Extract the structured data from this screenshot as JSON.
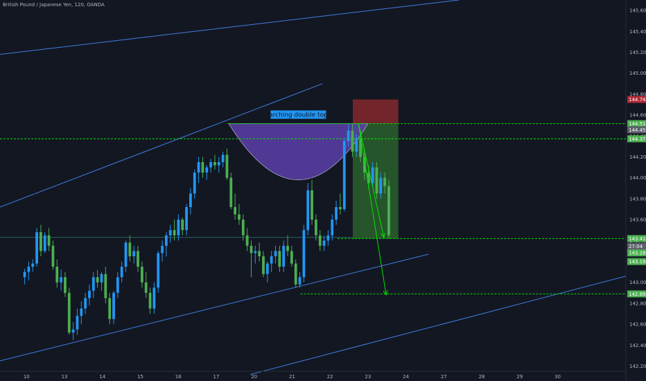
{
  "header": {
    "symbol_title": "British Pound / Japanese Yen, 120, OANDA"
  },
  "annotation": {
    "label": "arching double top"
  },
  "colors": {
    "background": "#131722",
    "candle_up": "#2196f3",
    "candle_down": "#4caf50",
    "trendline": "#3f7fe0",
    "level_line": "#00e600",
    "stop_zone": "#8b2b2f",
    "target_zone": "#2f6b2f",
    "arc_fill": "#5b3fa8",
    "axis_text": "#b2b5be"
  },
  "chart_data": {
    "type": "candlestick",
    "title": "British Pound / Japanese Yen, 120, OANDA",
    "ylim": [
      142.15,
      145.7
    ],
    "x_range": [
      -0.7,
      15.8
    ],
    "x_tick_labels": [
      {
        "x": 0,
        "label": "10"
      },
      {
        "x": 1,
        "label": "13"
      },
      {
        "x": 2,
        "label": "14"
      },
      {
        "x": 3,
        "label": "15"
      },
      {
        "x": 4,
        "label": "16"
      },
      {
        "x": 5,
        "label": "17"
      },
      {
        "x": 6,
        "label": "20"
      },
      {
        "x": 7,
        "label": "21"
      },
      {
        "x": 8,
        "label": "22"
      },
      {
        "x": 9,
        "label": "23"
      },
      {
        "x": 10,
        "label": "24"
      },
      {
        "x": 11,
        "label": "27"
      },
      {
        "x": 12,
        "label": "28"
      },
      {
        "x": 13,
        "label": "29"
      },
      {
        "x": 14,
        "label": "30"
      }
    ],
    "y_ticks": [
      142.2,
      142.4,
      142.6,
      142.8,
      143.0,
      143.2,
      143.4,
      143.6,
      143.8,
      144.0,
      144.2,
      144.4,
      144.6,
      144.8,
      145.0,
      145.2,
      145.4,
      145.6
    ],
    "y_tick_labels": [
      "142.200",
      "142.400",
      "142.600",
      "142.800",
      "143.000",
      "143.200",
      "143.400",
      "143.600",
      "143.800",
      "144.000",
      "144.200",
      "144.400",
      "144.600",
      "144.800",
      "145.000",
      "145.200",
      "145.400",
      "145.600"
    ],
    "price_tags": [
      {
        "value": 144.749,
        "label": "144.749",
        "color": "#b22833"
      },
      {
        "value": 144.518,
        "label": "144.518",
        "color": "#4caf50"
      },
      {
        "value": 144.459,
        "label": "144.459",
        "color": "#5d606b"
      },
      {
        "value": 144.373,
        "label": "144.373",
        "color": "#4caf50"
      },
      {
        "value": 143.419,
        "label": "143.419",
        "color": "#4caf50"
      },
      {
        "value": 143.345,
        "label": "27:04",
        "color": "#5d606b"
      },
      {
        "value": 143.282,
        "label": "143.282",
        "color": "#4caf50"
      },
      {
        "value": 143.199,
        "label": "143.199",
        "color": "#4caf50"
      },
      {
        "value": 142.89,
        "label": "142.890",
        "color": "#4caf50"
      }
    ],
    "levels": [
      {
        "value": 144.373,
        "x_start": -0.7,
        "x_end": 15.8,
        "style": "dashed"
      },
      {
        "value": 144.518,
        "x_start": 5.3,
        "x_end": 15.8,
        "style": "dashed"
      },
      {
        "value": 143.419,
        "x_start": 8.2,
        "x_end": 15.8,
        "style": "dashed"
      },
      {
        "value": 142.89,
        "x_start": 7.22,
        "x_end": 15.8,
        "style": "dashed"
      },
      {
        "value": 143.43,
        "x_start": -0.7,
        "x_end": 8.6,
        "style": "solid-thin"
      }
    ],
    "trendlines": [
      {
        "x1": -0.7,
        "y1": 145.18,
        "x2": 11.4,
        "y2": 145.7
      },
      {
        "x1": -0.7,
        "y1": 143.72,
        "x2": 7.8,
        "y2": 144.9
      },
      {
        "x1": -0.7,
        "y1": 142.25,
        "x2": 10.6,
        "y2": 143.27
      },
      {
        "x1": 5.9,
        "y1": 142.12,
        "x2": 15.8,
        "y2": 143.06
      }
    ],
    "arc": {
      "x1": 5.33,
      "x2": 9.0,
      "y_top": 144.518,
      "y_bottom": 143.98
    },
    "stop_zone": {
      "x1": 8.6,
      "x2": 9.8,
      "y_top": 144.749,
      "y_bottom": 144.518
    },
    "target_zone": {
      "x1": 8.6,
      "x2": 9.8,
      "y_top": 144.518,
      "y_bottom": 143.419
    },
    "arrows": [
      {
        "x1": 8.75,
        "y1": 144.52,
        "x2": 9.42,
        "y2": 143.43
      },
      {
        "x1": 8.75,
        "y1": 144.52,
        "x2": 9.48,
        "y2": 142.88
      }
    ],
    "candles": [
      [
        143.05,
        143.13,
        142.98,
        143.1
      ],
      [
        143.1,
        143.2,
        143.02,
        143.15
      ],
      [
        143.15,
        143.22,
        143.1,
        143.18
      ],
      [
        143.18,
        143.52,
        143.15,
        143.48
      ],
      [
        143.48,
        143.55,
        143.25,
        143.3
      ],
      [
        143.3,
        143.48,
        143.28,
        143.45
      ],
      [
        143.45,
        143.52,
        143.3,
        143.35
      ],
      [
        143.35,
        143.4,
        143.12,
        143.15
      ],
      [
        143.15,
        143.22,
        142.95,
        143.0
      ],
      [
        143.0,
        143.12,
        142.92,
        143.05
      ],
      [
        143.05,
        143.1,
        142.86,
        142.9
      ],
      [
        142.9,
        142.95,
        142.5,
        142.52
      ],
      [
        142.52,
        142.62,
        142.45,
        142.55
      ],
      [
        142.55,
        142.75,
        142.5,
        142.68
      ],
      [
        142.68,
        142.82,
        142.6,
        142.75
      ],
      [
        142.75,
        142.9,
        142.7,
        142.85
      ],
      [
        142.85,
        142.98,
        142.78,
        142.92
      ],
      [
        142.92,
        143.1,
        142.85,
        143.05
      ],
      [
        143.05,
        143.12,
        142.95,
        143.0
      ],
      [
        143.0,
        143.1,
        142.92,
        143.08
      ],
      [
        143.08,
        143.15,
        142.8,
        142.85
      ],
      [
        142.85,
        142.9,
        142.6,
        142.65
      ],
      [
        142.65,
        142.92,
        142.6,
        142.9
      ],
      [
        142.9,
        143.1,
        142.85,
        143.05
      ],
      [
        143.05,
        143.2,
        143.0,
        143.15
      ],
      [
        143.15,
        143.4,
        143.1,
        143.38
      ],
      [
        143.38,
        143.45,
        143.2,
        143.25
      ],
      [
        143.25,
        143.35,
        143.18,
        143.3
      ],
      [
        143.3,
        143.35,
        143.1,
        143.15
      ],
      [
        143.15,
        143.2,
        142.95,
        143.0
      ],
      [
        143.0,
        143.1,
        142.85,
        142.9
      ],
      [
        142.9,
        142.95,
        142.7,
        142.75
      ],
      [
        142.75,
        143.0,
        142.7,
        142.95
      ],
      [
        142.95,
        143.3,
        142.9,
        143.28
      ],
      [
        143.28,
        143.4,
        143.2,
        143.35
      ],
      [
        143.35,
        143.48,
        143.25,
        143.45
      ],
      [
        143.45,
        143.55,
        143.38,
        143.5
      ],
      [
        143.5,
        143.6,
        143.4,
        143.45
      ],
      [
        143.45,
        143.65,
        143.4,
        143.6
      ],
      [
        143.6,
        143.62,
        143.45,
        143.5
      ],
      [
        143.5,
        143.75,
        143.45,
        143.72
      ],
      [
        143.72,
        143.9,
        143.65,
        143.85
      ],
      [
        143.85,
        144.08,
        143.8,
        144.05
      ],
      [
        144.05,
        144.2,
        143.95,
        144.15
      ],
      [
        144.15,
        144.2,
        144.0,
        144.05
      ],
      [
        144.05,
        144.12,
        143.98,
        144.1
      ],
      [
        144.1,
        144.18,
        144.05,
        144.15
      ],
      [
        144.15,
        144.22,
        144.08,
        144.12
      ],
      [
        144.12,
        144.2,
        144.05,
        144.15
      ],
      [
        144.15,
        144.25,
        144.1,
        144.22
      ],
      [
        144.22,
        144.28,
        143.98,
        144.0
      ],
      [
        144.0,
        144.05,
        143.7,
        143.72
      ],
      [
        143.72,
        143.85,
        143.6,
        143.65
      ],
      [
        143.65,
        143.75,
        143.55,
        143.6
      ],
      [
        143.6,
        143.65,
        143.4,
        143.45
      ],
      [
        143.45,
        143.52,
        143.3,
        143.35
      ],
      [
        143.35,
        143.4,
        143.05,
        143.28
      ],
      [
        143.28,
        143.35,
        143.18,
        143.3
      ],
      [
        143.3,
        143.38,
        143.2,
        143.25
      ],
      [
        143.25,
        143.3,
        143.05,
        143.08
      ],
      [
        143.08,
        143.2,
        143.0,
        143.18
      ],
      [
        143.18,
        143.3,
        143.1,
        143.25
      ],
      [
        143.25,
        143.35,
        143.18,
        143.3
      ],
      [
        143.3,
        143.35,
        143.1,
        143.15
      ],
      [
        143.15,
        143.4,
        143.1,
        143.35
      ],
      [
        143.35,
        143.45,
        143.25,
        143.3
      ],
      [
        143.3,
        143.35,
        143.15,
        143.18
      ],
      [
        143.18,
        143.22,
        142.95,
        142.98
      ],
      [
        142.98,
        143.1,
        142.95,
        143.05
      ],
      [
        143.05,
        143.55,
        143.0,
        143.5
      ],
      [
        143.5,
        143.95,
        143.45,
        143.88
      ],
      [
        143.88,
        143.98,
        143.55,
        143.6
      ],
      [
        143.6,
        143.65,
        143.4,
        143.45
      ],
      [
        143.45,
        143.5,
        143.3,
        143.35
      ],
      [
        143.35,
        143.45,
        143.3,
        143.4
      ],
      [
        143.4,
        143.5,
        143.35,
        143.45
      ],
      [
        143.45,
        143.65,
        143.4,
        143.6
      ],
      [
        143.6,
        143.78,
        143.55,
        143.72
      ],
      [
        143.72,
        143.85,
        143.65,
        143.7
      ],
      [
        143.7,
        144.38,
        143.68,
        144.35
      ],
      [
        144.35,
        144.52,
        144.3,
        144.45
      ],
      [
        144.45,
        144.52,
        144.2,
        144.25
      ],
      [
        144.25,
        144.42,
        144.2,
        144.38
      ],
      [
        144.38,
        144.45,
        144.15,
        144.2
      ],
      [
        144.2,
        144.28,
        143.98,
        144.05
      ],
      [
        144.05,
        144.12,
        143.9,
        143.95
      ],
      [
        143.95,
        144.15,
        143.9,
        144.1
      ],
      [
        144.1,
        144.15,
        143.8,
        143.85
      ],
      [
        143.85,
        144.05,
        143.8,
        144.0
      ],
      [
        144.0,
        144.05,
        143.85,
        143.92
      ],
      [
        143.92,
        143.98,
        143.42,
        143.45
      ]
    ]
  }
}
